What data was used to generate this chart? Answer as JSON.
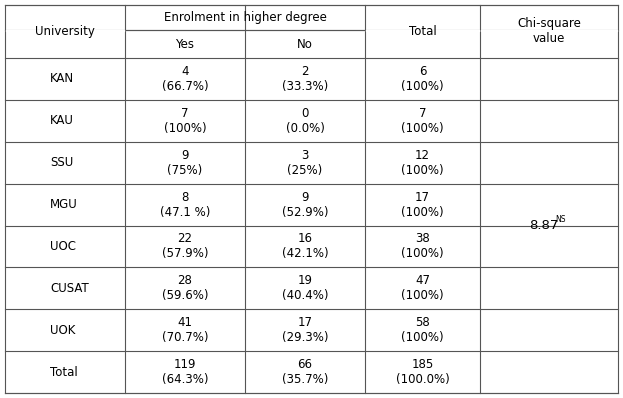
{
  "subheader": "Enrolment in higher degree",
  "col_labels": [
    "University",
    "Yes",
    "No",
    "Total",
    "Chi-square\nvalue"
  ],
  "rows": [
    [
      "KAN",
      "4\n(66.7%)",
      "2\n(33.3%)",
      "6\n(100%)"
    ],
    [
      "KAU",
      "7\n(100%)",
      "0\n(0.0%)",
      "7\n(100%)"
    ],
    [
      "SSU",
      "9\n(75%)",
      "3\n(25%)",
      "12\n(100%)"
    ],
    [
      "MGU",
      "8\n(47.1 %)",
      "9\n(52.9%)",
      "17\n(100%)"
    ],
    [
      "UOC",
      "22\n(57.9%)",
      "16\n(42.1%)",
      "38\n(100%)"
    ],
    [
      "CUSAT",
      "28\n(59.6%)",
      "19\n(40.4%)",
      "47\n(100%)"
    ],
    [
      "UOK",
      "41\n(70.7%)",
      "17\n(29.3%)",
      "58\n(100%)"
    ],
    [
      "Total",
      "119\n(64.3%)",
      "66\n(35.7%)",
      "185\n(100.0%)"
    ]
  ],
  "chi_square_value": "8.87",
  "chi_square_sup": "NS",
  "bg_color": "#ffffff",
  "line_color": "#555555",
  "font_size": 8.5
}
